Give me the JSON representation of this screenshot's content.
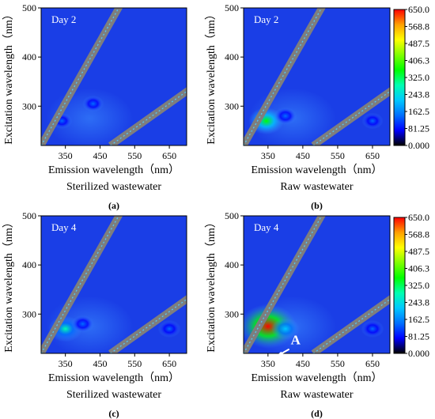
{
  "chart_data": [
    {
      "type": "heatmap",
      "panel_label": "(a)",
      "day_label": "Day 2",
      "sample": "Sterilized wastewater",
      "xlabel": "Emission wavelength（nm）",
      "ylabel": "Excitation wavelength（nm）",
      "x_ticks": [
        350,
        450,
        550,
        650
      ],
      "y_ticks": [
        300,
        400,
        500
      ],
      "xlim": [
        280,
        700
      ],
      "ylim": [
        220,
        500
      ],
      "peaks": [
        {
          "em": 340,
          "ex": 270,
          "intensity": 120
        },
        {
          "em": 430,
          "ex": 305,
          "intensity": 130
        }
      ],
      "colorbar": false
    },
    {
      "type": "heatmap",
      "panel_label": "(b)",
      "day_label": "Day 2",
      "sample": "Raw wastewater",
      "xlabel": "Emission wavelength（nm）",
      "ylabel": "Excitation wavelength（nm）",
      "x_ticks": [
        350,
        450,
        550,
        650
      ],
      "y_ticks": [
        300,
        400,
        500
      ],
      "xlim": [
        280,
        700
      ],
      "ylim": [
        220,
        500
      ],
      "peaks": [
        {
          "em": 345,
          "ex": 270,
          "intensity": 330
        },
        {
          "em": 400,
          "ex": 280,
          "intensity": 150
        },
        {
          "em": 650,
          "ex": 270,
          "intensity": 130
        }
      ],
      "colorbar": true
    },
    {
      "type": "heatmap",
      "panel_label": "(c)",
      "day_label": "Day 4",
      "sample": "Sterilized wastewater",
      "xlabel": "Emission wavelength（nm）",
      "ylabel": "Excitation wavelength（nm）",
      "x_ticks": [
        350,
        450,
        550,
        650
      ],
      "y_ticks": [
        300,
        400,
        500
      ],
      "xlim": [
        280,
        700
      ],
      "ylim": [
        220,
        500
      ],
      "peaks": [
        {
          "em": 350,
          "ex": 270,
          "intensity": 310
        },
        {
          "em": 400,
          "ex": 280,
          "intensity": 150
        },
        {
          "em": 650,
          "ex": 270,
          "intensity": 150
        }
      ],
      "colorbar": false
    },
    {
      "type": "heatmap",
      "panel_label": "(d)",
      "day_label": "Day 4",
      "sample": "Raw wastewater",
      "xlabel": "Emission wavelength（nm）",
      "ylabel": "Excitation wavelength（nm）",
      "x_ticks": [
        350,
        450,
        550,
        650
      ],
      "y_ticks": [
        300,
        400,
        500
      ],
      "xlim": [
        280,
        700
      ],
      "ylim": [
        220,
        500
      ],
      "peaks": [
        {
          "em": 350,
          "ex": 275,
          "intensity": 650
        },
        {
          "em": 400,
          "ex": 270,
          "intensity": 230
        },
        {
          "em": 650,
          "ex": 270,
          "intensity": 150
        }
      ],
      "annotation": {
        "text": "A",
        "em": 420,
        "ex": 235
      },
      "colorbar": true
    }
  ],
  "colorbar": {
    "labels": [
      "650.0",
      "568.8",
      "487.5",
      "406.3",
      "325.0",
      "243.8",
      "162.5",
      "81.25",
      "0.000"
    ]
  },
  "colors": {
    "scale": [
      "#000000",
      "#0000ff",
      "#0070ff",
      "#00c8ff",
      "#00ffb0",
      "#00ff00",
      "#80ff00",
      "#ffff00",
      "#ffa000",
      "#ff0000"
    ],
    "background": "#1a3ee6",
    "scatter_band": "#7e7e7e"
  }
}
